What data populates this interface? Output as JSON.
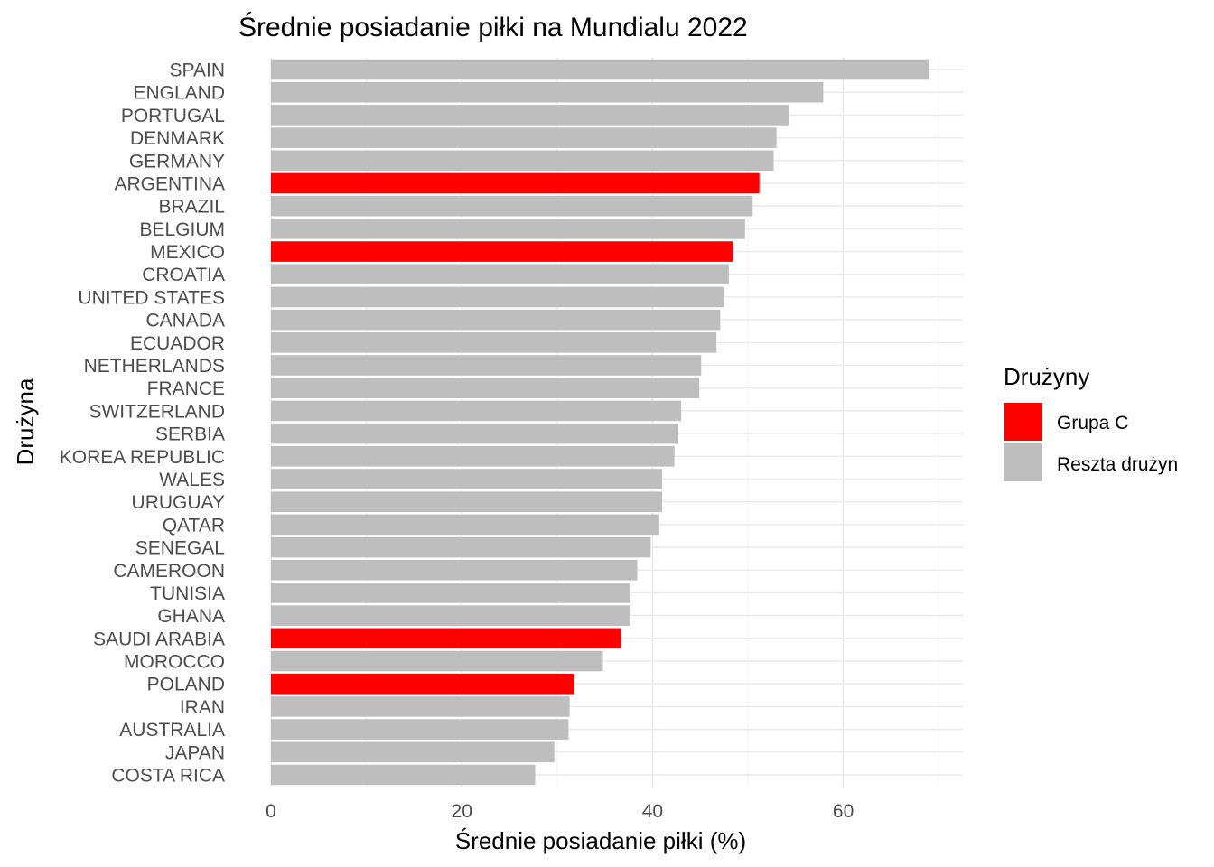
{
  "chart_data": {
    "type": "bar",
    "orientation": "horizontal",
    "title": "Średnie posiadanie piłki na Mundialu 2022",
    "xlabel": "Średnie posiadanie piłki (%)",
    "ylabel": "Drużyna",
    "xlim": [
      0,
      72.5
    ],
    "xticks": [
      0,
      20,
      40,
      60
    ],
    "grid": true,
    "legend": {
      "title": "Drużyny",
      "placement": "right",
      "entries": [
        {
          "label": "Grupa C",
          "color": "#ff0000"
        },
        {
          "label": "Reszta drużyn",
          "color": "#bebebe"
        }
      ]
    },
    "categories": [
      "SPAIN",
      "ENGLAND",
      "PORTUGAL",
      "DENMARK",
      "GERMANY",
      "ARGENTINA",
      "BRAZIL",
      "BELGIUM",
      "MEXICO",
      "CROATIA",
      "UNITED STATES",
      "CANADA",
      "ECUADOR",
      "NETHERLANDS",
      "FRANCE",
      "SWITZERLAND",
      "SERBIA",
      "KOREA REPUBLIC",
      "WALES",
      "URUGUAY",
      "QATAR",
      "SENEGAL",
      "CAMEROON",
      "TUNISIA",
      "GHANA",
      "SAUDI ARABIA",
      "MOROCCO",
      "POLAND",
      "IRAN",
      "AUSTRALIA",
      "JAPAN",
      "COSTA RICA"
    ],
    "values": [
      69.0,
      57.9,
      54.3,
      53.0,
      52.7,
      51.2,
      50.5,
      49.7,
      48.4,
      48.0,
      47.5,
      47.1,
      46.7,
      45.1,
      44.9,
      43.0,
      42.7,
      42.3,
      41.0,
      41.0,
      40.7,
      39.8,
      38.4,
      37.7,
      37.7,
      36.7,
      34.8,
      31.8,
      31.3,
      31.2,
      29.7,
      27.7
    ],
    "groups": [
      "Reszta drużyn",
      "Reszta drużyn",
      "Reszta drużyn",
      "Reszta drużyn",
      "Reszta drużyn",
      "Grupa C",
      "Reszta drużyn",
      "Reszta drużyn",
      "Grupa C",
      "Reszta drużyn",
      "Reszta drużyn",
      "Reszta drużyn",
      "Reszta drużyn",
      "Reszta drużyn",
      "Reszta drużyn",
      "Reszta drużyn",
      "Reszta drużyn",
      "Reszta drużyn",
      "Reszta drużyn",
      "Reszta drużyn",
      "Reszta drużyn",
      "Reszta drużyn",
      "Reszta drużyn",
      "Reszta drużyn",
      "Reszta drużyn",
      "Grupa C",
      "Reszta drużyn",
      "Grupa C",
      "Reszta drużyn",
      "Reszta drużyn",
      "Reszta drużyn",
      "Reszta drużyn"
    ]
  }
}
